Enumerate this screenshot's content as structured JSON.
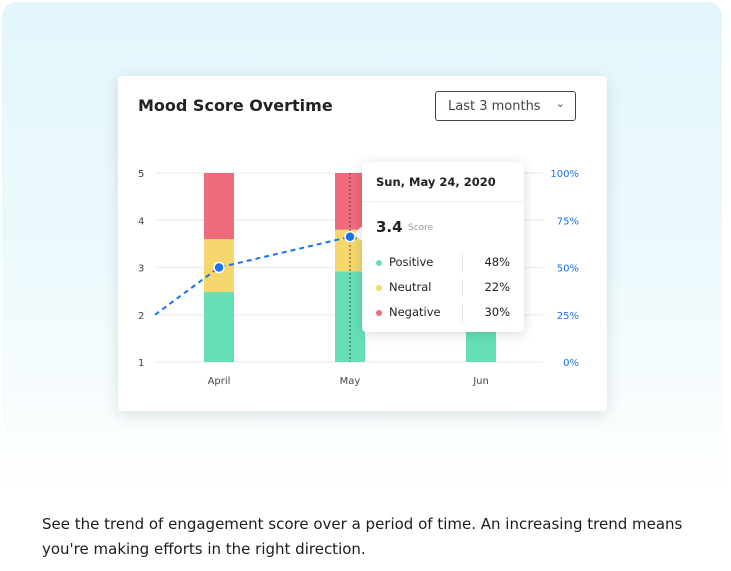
{
  "card": {
    "title": "Mood Score Overtime",
    "range_select": {
      "value": "Last 3 months"
    }
  },
  "chart_data": {
    "type": "bar",
    "title": "Mood Score Overtime",
    "categories": [
      "April",
      "May",
      "Jun"
    ],
    "stacked_percent_series": [
      {
        "name": "Positive",
        "color": "#66dfb4",
        "values": [
          37,
          48,
          50
        ]
      },
      {
        "name": "Neutral",
        "color": "#f5d76e",
        "values": [
          28,
          22,
          20
        ]
      },
      {
        "name": "Negative",
        "color": "#ef6b7b",
        "values": [
          35,
          30,
          30
        ]
      }
    ],
    "line_series": {
      "name": "Score",
      "color": "#1a73e8",
      "style": "dashed",
      "start_value": 2.0,
      "values": [
        3.0,
        3.65,
        null
      ]
    },
    "left_axis": {
      "ticks": [
        "1",
        "2",
        "3",
        "4",
        "5"
      ],
      "range": [
        1,
        5
      ]
    },
    "right_axis": {
      "ticks": [
        "0%",
        "25%",
        "50%",
        "75%",
        "100%"
      ],
      "range": [
        0,
        100
      ]
    },
    "grid": true
  },
  "tooltip": {
    "date": "Sun, May 24, 2020",
    "score": "3.4",
    "score_label": "Score",
    "rows": [
      {
        "label": "Positive",
        "value": "48%",
        "color": "#66dfb4"
      },
      {
        "label": "Neutral",
        "value": "22%",
        "color": "#f5d76e"
      },
      {
        "label": "Negative",
        "value": "30%",
        "color": "#ef6b7b"
      }
    ]
  },
  "caption": "See the trend of engagement score over a period of time. An increasing trend means you're making efforts in the right direction."
}
